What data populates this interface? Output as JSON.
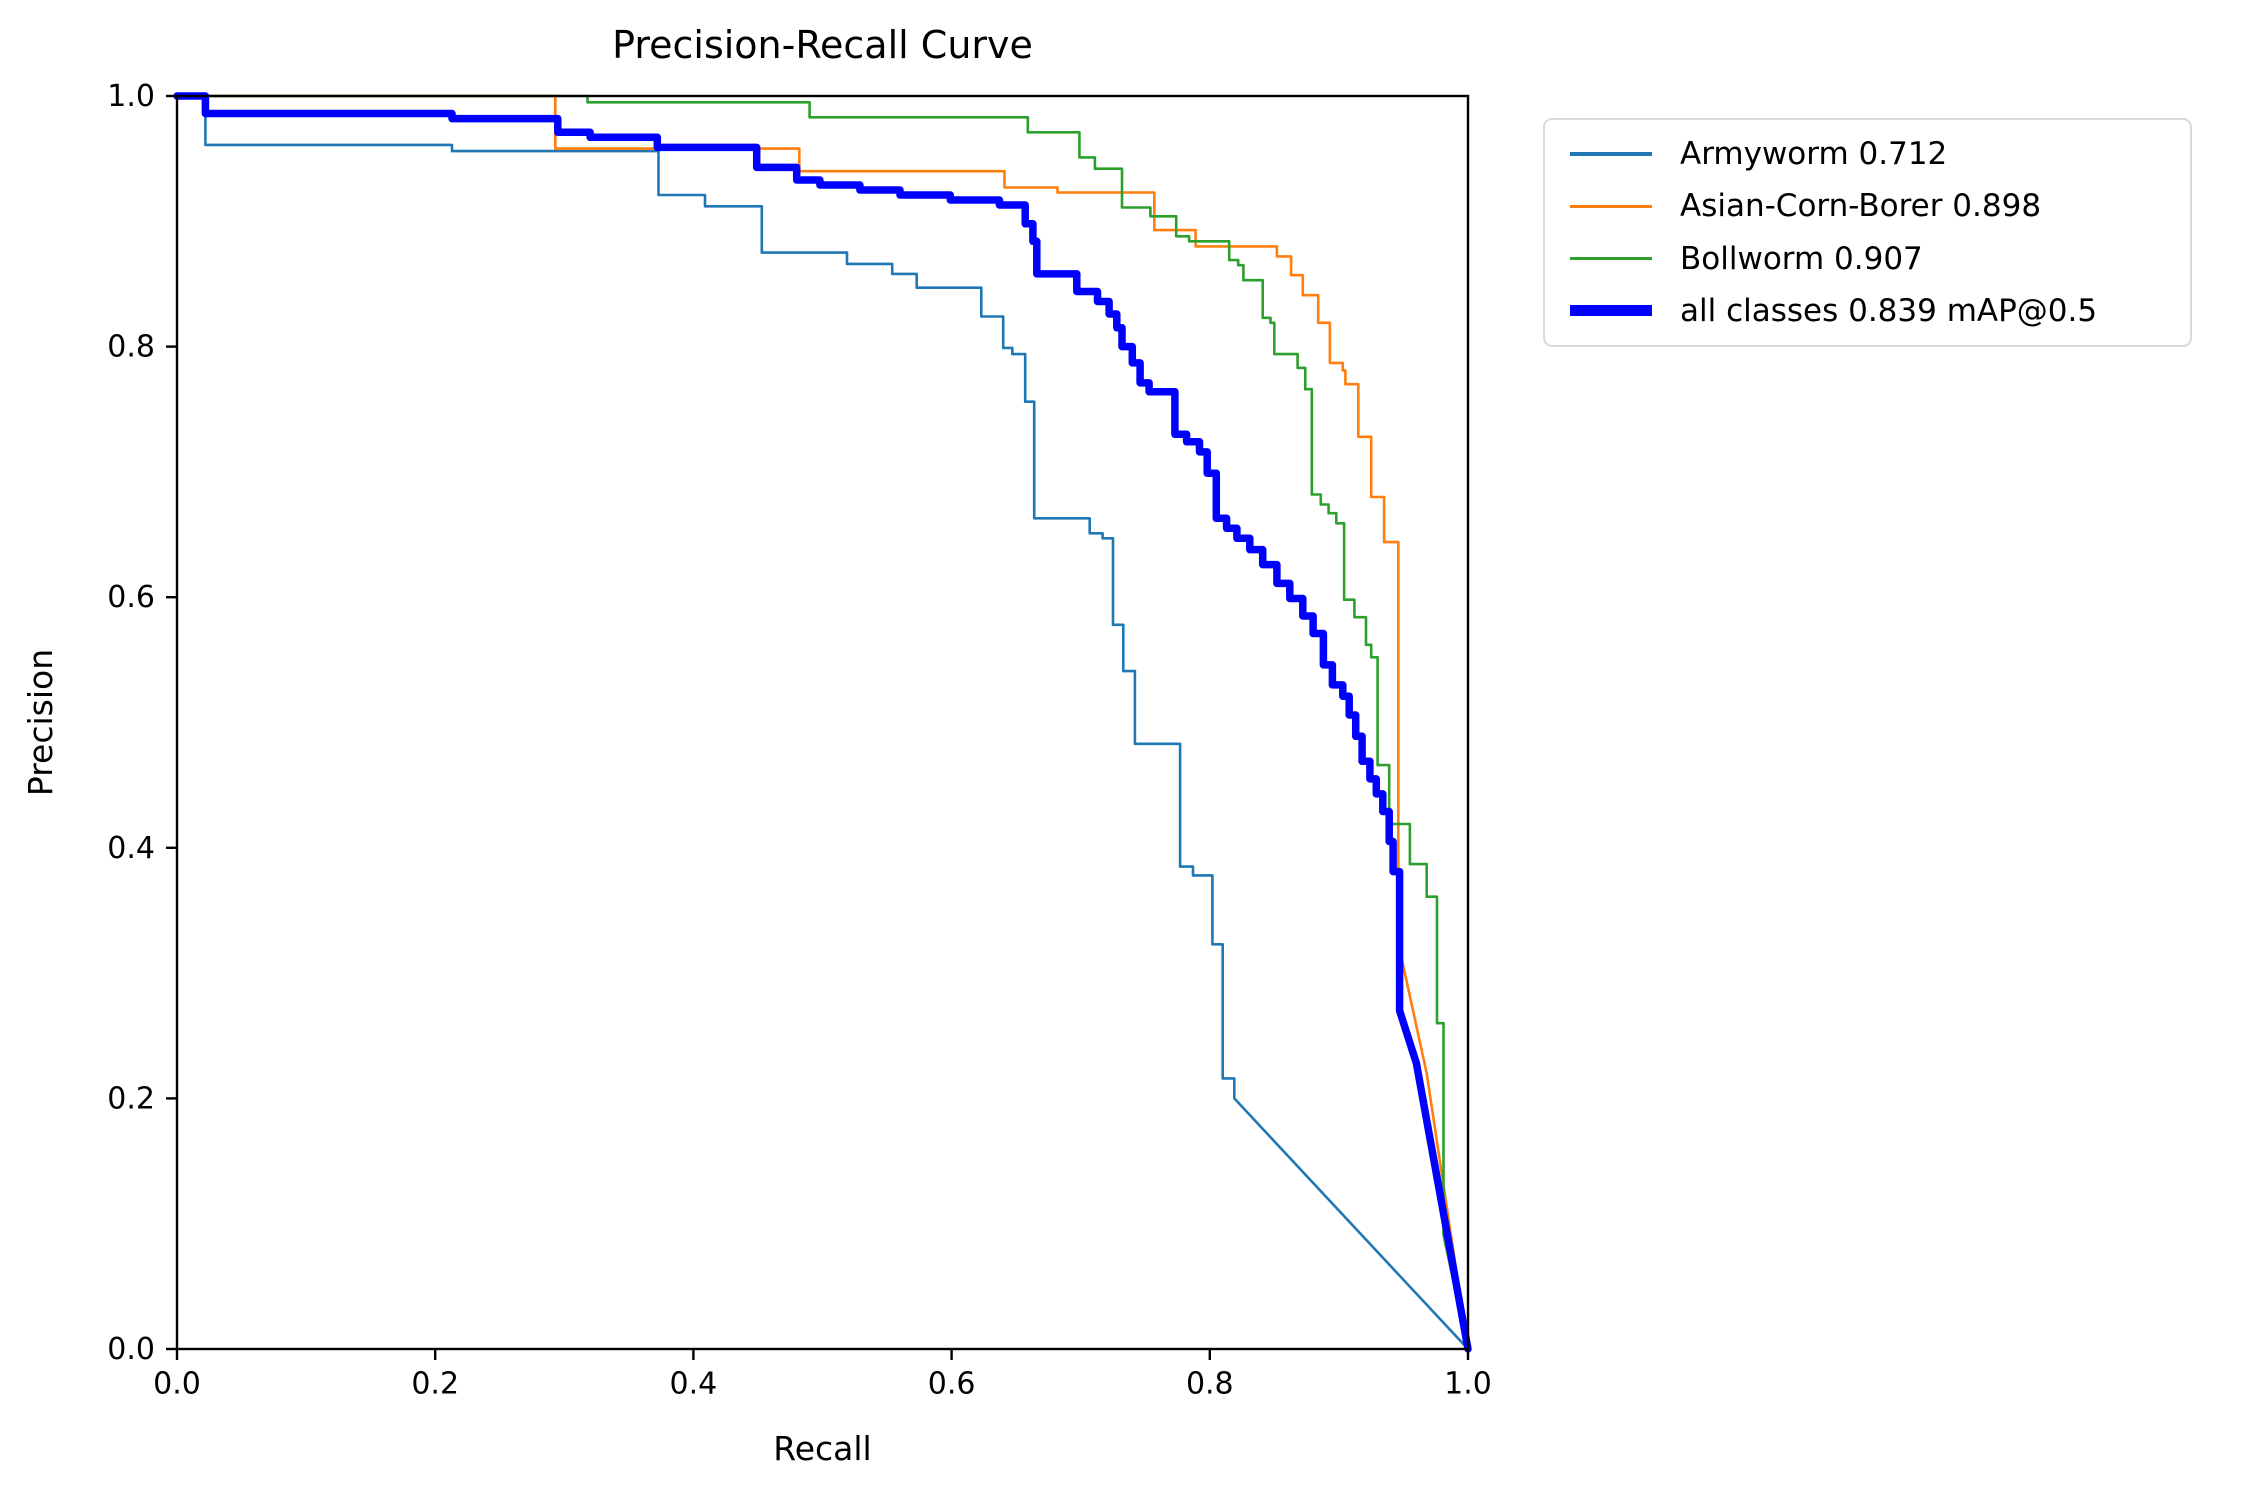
{
  "chart_data": {
    "type": "line",
    "title": "Precision-Recall Curve",
    "xlabel": "Recall",
    "ylabel": "Precision",
    "xlim": [
      0.0,
      1.0
    ],
    "ylim": [
      0.0,
      1.0
    ],
    "xticks": [
      "0.0",
      "0.2",
      "0.4",
      "0.6",
      "0.8",
      "1.0"
    ],
    "yticks": [
      "0.0",
      "0.2",
      "0.4",
      "0.6",
      "0.8",
      "1.0"
    ],
    "grid": false,
    "legend_position": "outside upper right",
    "series": [
      {
        "name": "Armyworm",
        "ap": 0.712,
        "legend_label": "Armyworm 0.712",
        "color": "#1f77b4",
        "linewidth": 2.6,
        "points": [
          [
            0,
            1
          ],
          [
            0.022,
            1
          ],
          [
            0.022,
            0.961
          ],
          [
            0.213,
            0.961
          ],
          [
            0.213,
            0.956
          ],
          [
            0.373,
            0.956
          ],
          [
            0.373,
            0.921
          ],
          [
            0.409,
            0.921
          ],
          [
            0.409,
            0.912
          ],
          [
            0.453,
            0.912
          ],
          [
            0.453,
            0.875
          ],
          [
            0.519,
            0.875
          ],
          [
            0.519,
            0.866
          ],
          [
            0.554,
            0.866
          ],
          [
            0.554,
            0.858
          ],
          [
            0.573,
            0.858
          ],
          [
            0.573,
            0.847
          ],
          [
            0.623,
            0.847
          ],
          [
            0.623,
            0.824
          ],
          [
            0.64,
            0.824
          ],
          [
            0.64,
            0.799
          ],
          [
            0.647,
            0.799
          ],
          [
            0.647,
            0.794
          ],
          [
            0.657,
            0.794
          ],
          [
            0.657,
            0.756
          ],
          [
            0.664,
            0.756
          ],
          [
            0.664,
            0.663
          ],
          [
            0.707,
            0.663
          ],
          [
            0.707,
            0.651
          ],
          [
            0.717,
            0.651
          ],
          [
            0.717,
            0.647
          ],
          [
            0.725,
            0.647
          ],
          [
            0.725,
            0.578
          ],
          [
            0.733,
            0.578
          ],
          [
            0.733,
            0.541
          ],
          [
            0.742,
            0.541
          ],
          [
            0.742,
            0.483
          ],
          [
            0.777,
            0.483
          ],
          [
            0.777,
            0.385
          ],
          [
            0.787,
            0.385
          ],
          [
            0.787,
            0.378
          ],
          [
            0.802,
            0.378
          ],
          [
            0.802,
            0.323
          ],
          [
            0.81,
            0.323
          ],
          [
            0.81,
            0.216
          ],
          [
            0.819,
            0.216
          ],
          [
            0.819,
            0.2
          ],
          [
            1,
            0
          ]
        ]
      },
      {
        "name": "Asian-Corn-Borer",
        "ap": 0.898,
        "legend_label": "Asian-Corn-Borer 0.898",
        "color": "#ff7f0e",
        "linewidth": 2.6,
        "points": [
          [
            0,
            1
          ],
          [
            0.293,
            1
          ],
          [
            0.293,
            0.958
          ],
          [
            0.482,
            0.958
          ],
          [
            0.482,
            0.94
          ],
          [
            0.641,
            0.94
          ],
          [
            0.641,
            0.927
          ],
          [
            0.682,
            0.927
          ],
          [
            0.682,
            0.923
          ],
          [
            0.757,
            0.923
          ],
          [
            0.757,
            0.893
          ],
          [
            0.789,
            0.893
          ],
          [
            0.789,
            0.88
          ],
          [
            0.852,
            0.88
          ],
          [
            0.852,
            0.872
          ],
          [
            0.863,
            0.872
          ],
          [
            0.863,
            0.857
          ],
          [
            0.872,
            0.857
          ],
          [
            0.872,
            0.841
          ],
          [
            0.884,
            0.841
          ],
          [
            0.884,
            0.819
          ],
          [
            0.893,
            0.819
          ],
          [
            0.893,
            0.787
          ],
          [
            0.903,
            0.787
          ],
          [
            0.903,
            0.781
          ],
          [
            0.905,
            0.781
          ],
          [
            0.905,
            0.77
          ],
          [
            0.915,
            0.77
          ],
          [
            0.915,
            0.728
          ],
          [
            0.925,
            0.728
          ],
          [
            0.925,
            0.68
          ],
          [
            0.935,
            0.68
          ],
          [
            0.935,
            0.644
          ],
          [
            0.946,
            0.644
          ],
          [
            0.946,
            0.324
          ],
          [
            0.968,
            0.22
          ],
          [
            1,
            0
          ]
        ]
      },
      {
        "name": "Bollworm",
        "ap": 0.907,
        "legend_label": "Bollworm 0.907",
        "color": "#2ca02c",
        "linewidth": 2.6,
        "points": [
          [
            0,
            1
          ],
          [
            0.318,
            1
          ],
          [
            0.318,
            0.995
          ],
          [
            0.49,
            0.995
          ],
          [
            0.49,
            0.983
          ],
          [
            0.659,
            0.983
          ],
          [
            0.659,
            0.971
          ],
          [
            0.699,
            0.971
          ],
          [
            0.699,
            0.951
          ],
          [
            0.711,
            0.951
          ],
          [
            0.711,
            0.942
          ],
          [
            0.732,
            0.942
          ],
          [
            0.732,
            0.911
          ],
          [
            0.754,
            0.911
          ],
          [
            0.754,
            0.904
          ],
          [
            0.774,
            0.904
          ],
          [
            0.774,
            0.888
          ],
          [
            0.784,
            0.888
          ],
          [
            0.784,
            0.884
          ],
          [
            0.815,
            0.884
          ],
          [
            0.815,
            0.869
          ],
          [
            0.822,
            0.869
          ],
          [
            0.822,
            0.865
          ],
          [
            0.826,
            0.865
          ],
          [
            0.826,
            0.853
          ],
          [
            0.841,
            0.853
          ],
          [
            0.841,
            0.823
          ],
          [
            0.847,
            0.823
          ],
          [
            0.847,
            0.819
          ],
          [
            0.85,
            0.819
          ],
          [
            0.85,
            0.794
          ],
          [
            0.868,
            0.794
          ],
          [
            0.868,
            0.783
          ],
          [
            0.874,
            0.783
          ],
          [
            0.874,
            0.766
          ],
          [
            0.879,
            0.766
          ],
          [
            0.879,
            0.682
          ],
          [
            0.886,
            0.682
          ],
          [
            0.886,
            0.674
          ],
          [
            0.892,
            0.674
          ],
          [
            0.892,
            0.667
          ],
          [
            0.898,
            0.667
          ],
          [
            0.898,
            0.659
          ],
          [
            0.904,
            0.659
          ],
          [
            0.904,
            0.598
          ],
          [
            0.912,
            0.598
          ],
          [
            0.912,
            0.584
          ],
          [
            0.921,
            0.584
          ],
          [
            0.921,
            0.562
          ],
          [
            0.925,
            0.562
          ],
          [
            0.925,
            0.552
          ],
          [
            0.93,
            0.552
          ],
          [
            0.93,
            0.466
          ],
          [
            0.939,
            0.466
          ],
          [
            0.939,
            0.419
          ],
          [
            0.955,
            0.419
          ],
          [
            0.955,
            0.387
          ],
          [
            0.968,
            0.387
          ],
          [
            0.968,
            0.361
          ],
          [
            0.976,
            0.361
          ],
          [
            0.976,
            0.26
          ],
          [
            0.981,
            0.26
          ],
          [
            0.981,
            0.091
          ],
          [
            1,
            0
          ]
        ]
      },
      {
        "name": "all classes",
        "ap": 0.839,
        "legend_label": "all classes 0.839 mAP@0.5",
        "color": "#0000ff",
        "linewidth": 7.5,
        "points": [
          [
            0,
            1
          ],
          [
            0.022,
            1
          ],
          [
            0.022,
            0.986
          ],
          [
            0.213,
            0.986
          ],
          [
            0.213,
            0.982
          ],
          [
            0.295,
            0.982
          ],
          [
            0.295,
            0.971
          ],
          [
            0.32,
            0.971
          ],
          [
            0.32,
            0.967
          ],
          [
            0.372,
            0.967
          ],
          [
            0.372,
            0.959
          ],
          [
            0.449,
            0.959
          ],
          [
            0.449,
            0.943
          ],
          [
            0.48,
            0.943
          ],
          [
            0.48,
            0.933
          ],
          [
            0.498,
            0.933
          ],
          [
            0.498,
            0.929
          ],
          [
            0.529,
            0.929
          ],
          [
            0.529,
            0.925
          ],
          [
            0.56,
            0.925
          ],
          [
            0.56,
            0.921
          ],
          [
            0.599,
            0.921
          ],
          [
            0.599,
            0.917
          ],
          [
            0.637,
            0.917
          ],
          [
            0.637,
            0.913
          ],
          [
            0.657,
            0.913
          ],
          [
            0.657,
            0.898
          ],
          [
            0.663,
            0.898
          ],
          [
            0.663,
            0.884
          ],
          [
            0.666,
            0.884
          ],
          [
            0.666,
            0.858
          ],
          [
            0.697,
            0.858
          ],
          [
            0.697,
            0.844
          ],
          [
            0.713,
            0.844
          ],
          [
            0.713,
            0.836
          ],
          [
            0.722,
            0.836
          ],
          [
            0.722,
            0.826
          ],
          [
            0.728,
            0.826
          ],
          [
            0.728,
            0.815
          ],
          [
            0.732,
            0.815
          ],
          [
            0.732,
            0.8
          ],
          [
            0.74,
            0.8
          ],
          [
            0.74,
            0.787
          ],
          [
            0.746,
            0.787
          ],
          [
            0.746,
            0.771
          ],
          [
            0.753,
            0.771
          ],
          [
            0.753,
            0.764
          ],
          [
            0.773,
            0.764
          ],
          [
            0.773,
            0.73
          ],
          [
            0.782,
            0.73
          ],
          [
            0.782,
            0.724
          ],
          [
            0.792,
            0.724
          ],
          [
            0.792,
            0.716
          ],
          [
            0.798,
            0.716
          ],
          [
            0.798,
            0.699
          ],
          [
            0.805,
            0.699
          ],
          [
            0.805,
            0.663
          ],
          [
            0.813,
            0.663
          ],
          [
            0.813,
            0.655
          ],
          [
            0.821,
            0.655
          ],
          [
            0.821,
            0.647
          ],
          [
            0.831,
            0.647
          ],
          [
            0.831,
            0.638
          ],
          [
            0.841,
            0.638
          ],
          [
            0.841,
            0.626
          ],
          [
            0.852,
            0.626
          ],
          [
            0.852,
            0.611
          ],
          [
            0.862,
            0.611
          ],
          [
            0.862,
            0.599
          ],
          [
            0.872,
            0.599
          ],
          [
            0.872,
            0.585
          ],
          [
            0.88,
            0.585
          ],
          [
            0.88,
            0.571
          ],
          [
            0.888,
            0.571
          ],
          [
            0.888,
            0.546
          ],
          [
            0.895,
            0.546
          ],
          [
            0.895,
            0.53
          ],
          [
            0.903,
            0.53
          ],
          [
            0.903,
            0.521
          ],
          [
            0.908,
            0.521
          ],
          [
            0.908,
            0.506
          ],
          [
            0.913,
            0.506
          ],
          [
            0.913,
            0.489
          ],
          [
            0.918,
            0.489
          ],
          [
            0.918,
            0.469
          ],
          [
            0.924,
            0.469
          ],
          [
            0.924,
            0.455
          ],
          [
            0.929,
            0.455
          ],
          [
            0.929,
            0.443
          ],
          [
            0.934,
            0.443
          ],
          [
            0.934,
            0.429
          ],
          [
            0.939,
            0.429
          ],
          [
            0.939,
            0.405
          ],
          [
            0.942,
            0.405
          ],
          [
            0.942,
            0.381
          ],
          [
            0.947,
            0.381
          ],
          [
            0.947,
            0.27
          ],
          [
            0.96,
            0.228
          ],
          [
            1,
            0
          ]
        ]
      }
    ]
  }
}
